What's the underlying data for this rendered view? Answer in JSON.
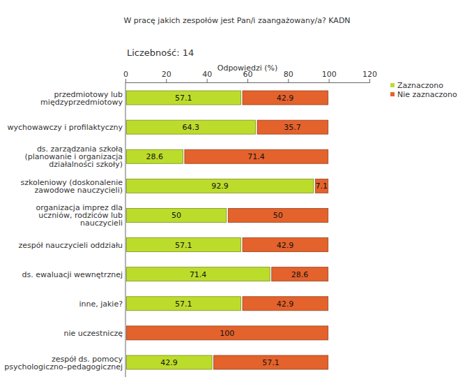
{
  "chart_data": {
    "type": "bar",
    "orientation": "horizontal",
    "stacked": true,
    "data_labels": true,
    "grid": false,
    "legend": "top-right",
    "title": "W pracę jakich zespołów jest Pan/i zaangażowany/a? KADN",
    "subtitle": "Liczebność: 14",
    "x_label": "Odpowiedzi (%)",
    "xlim": [
      0,
      120
    ],
    "xticks": [
      0,
      20,
      40,
      60,
      80,
      100,
      120
    ],
    "categories": [
      "przedmiotowy lub\nmiędzyprzedmiotowy",
      "wychowawczy i profilaktyczny",
      "ds. zarządzania szkołą\n(planowanie i organizacja\ndziałalności szkoły)",
      "szkoleniowy (doskonalenie\nzawodowe nauczycieli)",
      "organizacja imprez dla\nuczniów, rodziców lub\nnauczycieli",
      "zespół nauczycieli oddziału",
      "ds. ewaluacji wewnętrznej",
      "inne, jakie?",
      "nie uczestniczę",
      "zespół ds. pomocy\npsychologiczno–pedagogicznej"
    ],
    "series": [
      {
        "name": "Zaznaczono",
        "color": "#bcdc2c",
        "values": [
          57.1,
          64.3,
          28.6,
          92.9,
          50,
          57.1,
          71.4,
          57.1,
          0,
          42.9
        ]
      },
      {
        "name": "Nie zaznaczono",
        "color": "#e4622c",
        "values": [
          42.9,
          35.7,
          71.4,
          7.1,
          50,
          42.9,
          28.6,
          42.9,
          100,
          57.1
        ]
      }
    ]
  }
}
